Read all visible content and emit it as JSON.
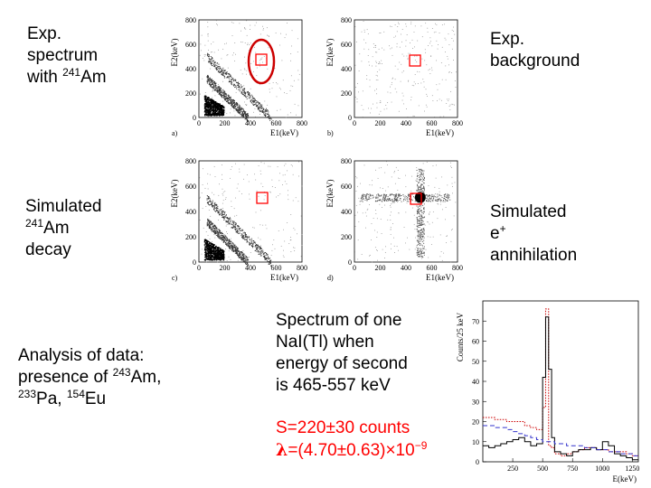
{
  "labels": {
    "exp_spectrum": {
      "line1": "Exp.",
      "line2": "spectrum",
      "line3_pre": "with ",
      "sup": "241",
      "line3_post": "Am"
    },
    "exp_background": {
      "line1": "Exp.",
      "line2": "background"
    },
    "sim_am": {
      "line1": "Simulated",
      "sup": "241",
      "line2_post": "Am",
      "line3": "decay"
    },
    "sim_annihilation": {
      "line1": "Simulated",
      "line2": "e",
      "sup": "+",
      "line3": "annihilation"
    },
    "analysis": {
      "line1": "Analysis of data:",
      "line2_pre": "presence of ",
      "sup243": "243",
      "line2_post": "Am,",
      "sup233": "233",
      "line3_a": "Pa, ",
      "sup154": "154",
      "line3_b": "Eu"
    },
    "spectrum_note": {
      "line1": "Spectrum of one",
      "line2": "NaI(Tl) when",
      "line3": "energy of second",
      "line4": "is 465-557 keV"
    },
    "result": {
      "s_line": "S=220±30 counts",
      "lambda_sym": "λ",
      "lambda_rest": "=(4.70±0.63)×10",
      "exponent": "−9"
    }
  },
  "scatter_panels": {
    "x_axis_label": "E1(keV)",
    "y_axis_label": "E2(keV)",
    "ticks": [
      "0",
      "200",
      "400",
      "600",
      "800"
    ],
    "panel_letters": [
      "a)",
      "b)",
      "c)",
      "d)"
    ],
    "roi_color": "#ff0000",
    "ellipse_color": "#cc0000"
  },
  "chart_data": {
    "type": "line",
    "title": "",
    "xlabel": "E(keV)",
    "ylabel": "Counts/25 keV",
    "xlim": [
      0,
      1300
    ],
    "ylim": [
      0,
      80
    ],
    "x_ticks": [
      250,
      500,
      750,
      1000,
      1250
    ],
    "y_ticks": [
      0,
      10,
      20,
      30,
      40,
      50,
      60,
      70
    ],
    "series": [
      {
        "name": "red dotted",
        "color": "#cc0000",
        "values": [
          [
            0,
            22
          ],
          [
            50,
            22
          ],
          [
            100,
            21
          ],
          [
            150,
            21
          ],
          [
            200,
            20
          ],
          [
            250,
            20
          ],
          [
            300,
            20
          ],
          [
            350,
            18
          ],
          [
            400,
            17
          ],
          [
            450,
            16
          ],
          [
            500,
            27
          ],
          [
            525,
            76
          ],
          [
            550,
            8
          ],
          [
            575,
            7
          ],
          [
            600,
            4
          ],
          [
            650,
            3
          ],
          [
            700,
            4
          ],
          [
            750,
            5
          ],
          [
            800,
            6
          ],
          [
            850,
            7
          ],
          [
            900,
            7
          ],
          [
            950,
            6
          ],
          [
            1000,
            6
          ],
          [
            1050,
            5
          ],
          [
            1100,
            5
          ],
          [
            1150,
            5
          ],
          [
            1200,
            4
          ],
          [
            1250,
            3
          ],
          [
            1300,
            3
          ]
        ]
      },
      {
        "name": "black",
        "color": "#000000",
        "values": [
          [
            0,
            8
          ],
          [
            50,
            7
          ],
          [
            100,
            8
          ],
          [
            150,
            9
          ],
          [
            200,
            10
          ],
          [
            250,
            11
          ],
          [
            300,
            12
          ],
          [
            350,
            10
          ],
          [
            400,
            8
          ],
          [
            450,
            9
          ],
          [
            500,
            42
          ],
          [
            525,
            72
          ],
          [
            550,
            46
          ],
          [
            575,
            12
          ],
          [
            600,
            5
          ],
          [
            650,
            4
          ],
          [
            700,
            3
          ],
          [
            750,
            5
          ],
          [
            800,
            6
          ],
          [
            850,
            6
          ],
          [
            900,
            7
          ],
          [
            950,
            6
          ],
          [
            1000,
            10
          ],
          [
            1050,
            8
          ],
          [
            1100,
            4
          ],
          [
            1150,
            3
          ],
          [
            1200,
            2
          ],
          [
            1250,
            1
          ],
          [
            1300,
            1
          ]
        ]
      },
      {
        "name": "blue dashed",
        "color": "#3333cc",
        "values": [
          [
            0,
            18
          ],
          [
            50,
            18
          ],
          [
            100,
            17
          ],
          [
            150,
            17
          ],
          [
            200,
            16
          ],
          [
            250,
            15
          ],
          [
            300,
            14
          ],
          [
            350,
            13
          ],
          [
            400,
            12
          ],
          [
            450,
            11
          ],
          [
            500,
            10
          ],
          [
            550,
            10
          ],
          [
            600,
            9
          ],
          [
            650,
            9
          ],
          [
            700,
            8
          ],
          [
            750,
            8
          ],
          [
            800,
            8
          ],
          [
            850,
            7
          ],
          [
            900,
            7
          ],
          [
            950,
            6
          ],
          [
            1000,
            6
          ],
          [
            1050,
            5
          ],
          [
            1100,
            5
          ],
          [
            1150,
            4
          ],
          [
            1200,
            4
          ],
          [
            1250,
            3
          ],
          [
            1300,
            3
          ]
        ]
      }
    ]
  }
}
